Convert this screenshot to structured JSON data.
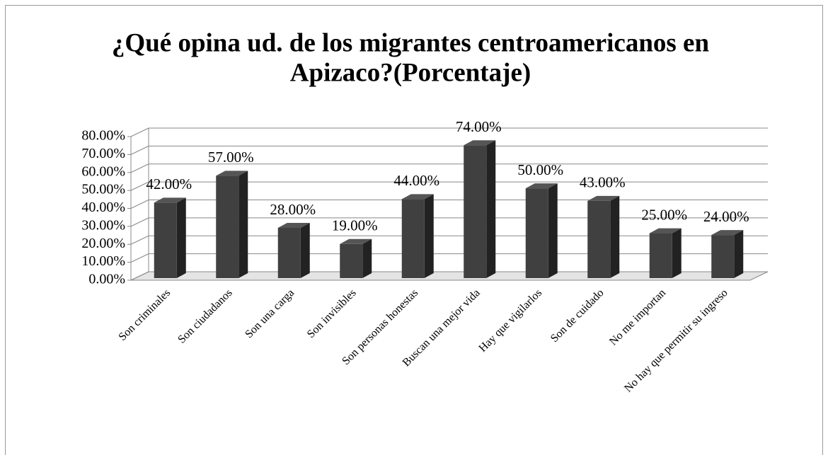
{
  "chart_data": {
    "type": "bar3d",
    "title": [
      "¿Qué opina ud. de los migrantes centroamericanos en",
      "Apizaco?(Porcentaje)"
    ],
    "categories": [
      "Son criminales",
      "Son ciudadanos",
      "Son una carga",
      "Son invisibles",
      "Son personas honestas",
      "Buscan una mejor vida",
      "Hay que vigilarlos",
      "Son de cuidado",
      "No me importan",
      "No hay que permitir su ingreso"
    ],
    "values": [
      42,
      57,
      28,
      19,
      44,
      74,
      50,
      43,
      25,
      24
    ],
    "value_labels": [
      "42.00%",
      "57.00%",
      "28.00%",
      "19.00%",
      "44.00%",
      "74.00%",
      "50.00%",
      "43.00%",
      "25.00%",
      "24.00%"
    ],
    "color": "#404040",
    "ylim": [
      0,
      80
    ],
    "yticks": [
      {
        "value": 0,
        "label": "0.00%"
      },
      {
        "value": 10,
        "label": "10.00%"
      },
      {
        "value": 20,
        "label": "20.00%"
      },
      {
        "value": 30,
        "label": "30.00%"
      },
      {
        "value": 40,
        "label": "40.00%"
      },
      {
        "value": 50,
        "label": "50.00%"
      },
      {
        "value": 60,
        "label": "60.00%"
      },
      {
        "value": 70,
        "label": "70.00%"
      },
      {
        "value": 80,
        "label": "80.00%"
      }
    ],
    "grid": true
  }
}
